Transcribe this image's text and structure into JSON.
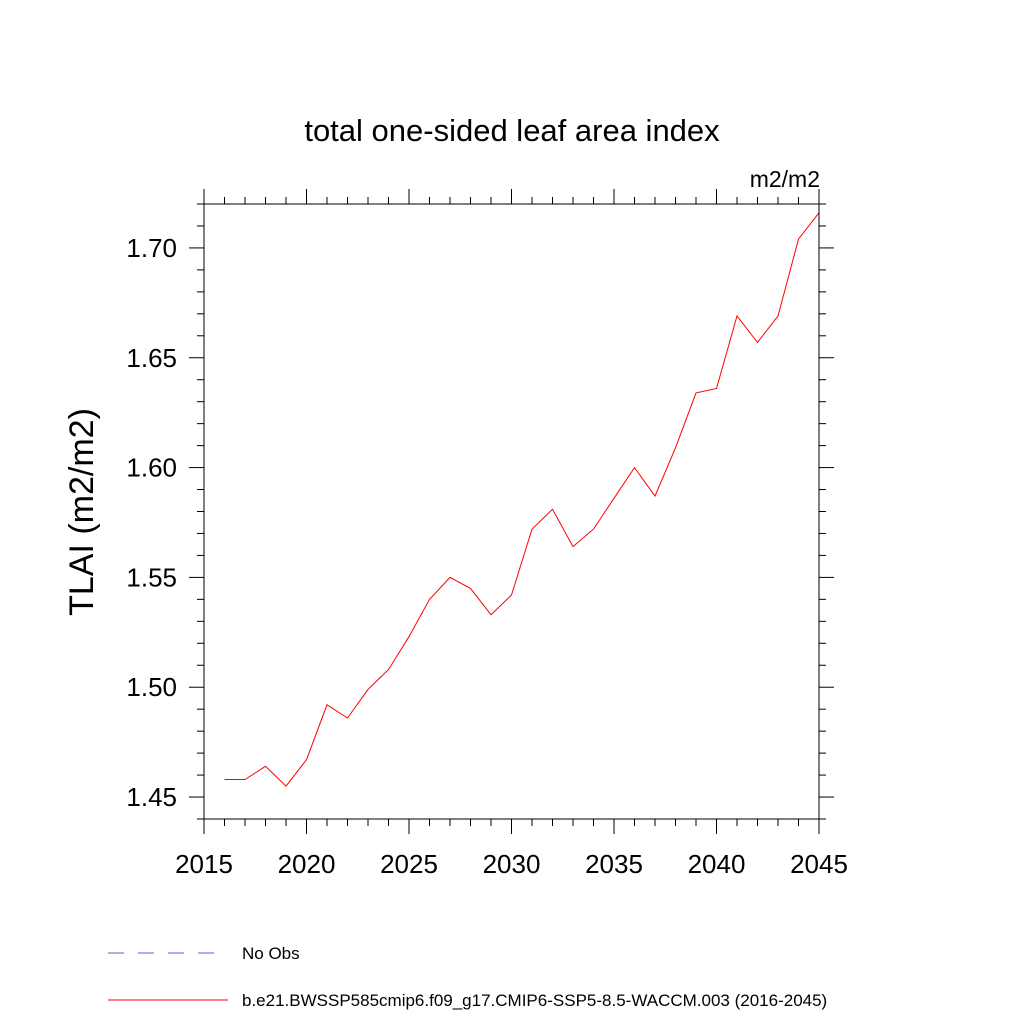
{
  "chart_data": {
    "type": "line",
    "title": "total one-sided leaf area index",
    "units_label": "m2/m2",
    "ylabel": "TLAI  (m2/m2)",
    "xlabel": "",
    "xlim": [
      2015,
      2045
    ],
    "ylim": [
      1.44,
      1.72
    ],
    "x_ticks": [
      2015,
      2020,
      2025,
      2030,
      2035,
      2040,
      2045
    ],
    "x_tick_labels": [
      "2015",
      "2020",
      "2025",
      "2030",
      "2035",
      "2040",
      "2045"
    ],
    "y_ticks": [
      1.45,
      1.5,
      1.55,
      1.6,
      1.65,
      1.7
    ],
    "y_tick_labels": [
      "1.45",
      "1.50",
      "1.55",
      "1.60",
      "1.65",
      "1.70"
    ],
    "grid": false,
    "series": [
      {
        "name": "b.e21.BWSSP585cmip6.f09_g17.CMIP6-SSP5-8.5-WACCM.003 (2016-2045)",
        "color": "#ff0000",
        "style": "solid",
        "x": [
          2016,
          2017,
          2018,
          2019,
          2020,
          2021,
          2022,
          2023,
          2024,
          2025,
          2026,
          2027,
          2028,
          2029,
          2030,
          2031,
          2032,
          2033,
          2034,
          2035,
          2036,
          2037,
          2038,
          2039,
          2040,
          2041,
          2042,
          2043,
          2044,
          2045
        ],
        "values": [
          1.458,
          1.458,
          1.464,
          1.455,
          1.467,
          1.492,
          1.486,
          1.499,
          1.508,
          1.523,
          1.54,
          1.55,
          1.545,
          1.533,
          1.542,
          1.572,
          1.581,
          1.564,
          1.572,
          1.586,
          1.6,
          1.587,
          1.609,
          1.634,
          1.636,
          1.669,
          1.657,
          1.669,
          1.704,
          1.716
        ]
      }
    ],
    "legend": {
      "placement": "bottom-left",
      "entries": [
        {
          "label": "No Obs",
          "color": "#6a5acd",
          "style": "dashed"
        },
        {
          "label": "b.e21.BWSSP585cmip6.f09_g17.CMIP6-SSP5-8.5-WACCM.003 (2016-2045)",
          "color": "#ff0000",
          "style": "solid"
        }
      ]
    }
  }
}
